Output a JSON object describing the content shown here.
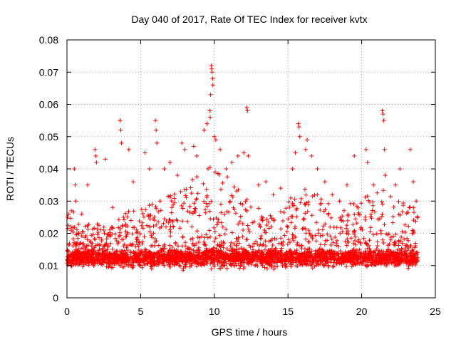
{
  "chart_data": {
    "type": "scatter",
    "title": "Day 040 of 2017, Rate Of TEC Index for receiver kvtx",
    "xlabel": "GPS time / hours",
    "ylabel": "ROTI / TECUs",
    "xlim": [
      0,
      25
    ],
    "ylim": [
      0,
      0.08
    ],
    "x_ticks": [
      "0",
      "5",
      "10",
      "15",
      "20",
      "25"
    ],
    "x_tick_values": [
      0,
      5,
      10,
      15,
      20,
      25
    ],
    "y_ticks": [
      "0",
      "0.01",
      "0.02",
      "0.03",
      "0.04",
      "0.05",
      "0.06",
      "0.07",
      "0.08"
    ],
    "y_tick_values": [
      0,
      0.01,
      0.02,
      0.03,
      0.04,
      0.05,
      0.06,
      0.07,
      0.08
    ],
    "grid": true,
    "marker": "+",
    "color": "#ff0000",
    "x_data_range": [
      0,
      23.8
    ],
    "baseline_band": [
      0.005,
      0.022
    ],
    "series": [
      {
        "name": "ROTI",
        "points": [
          [
            0.05,
            0.025
          ],
          [
            0.1,
            0.026
          ],
          [
            0.3,
            0.027
          ],
          [
            0.5,
            0.04
          ],
          [
            0.55,
            0.035
          ],
          [
            0.6,
            0.03
          ],
          [
            1.0,
            0.026
          ],
          [
            1.4,
            0.035
          ],
          [
            1.9,
            0.046
          ],
          [
            1.95,
            0.044
          ],
          [
            2.0,
            0.042
          ],
          [
            2.6,
            0.043
          ],
          [
            3.1,
            0.028
          ],
          [
            3.6,
            0.055
          ],
          [
            3.65,
            0.052
          ],
          [
            3.7,
            0.048
          ],
          [
            4.2,
            0.046
          ],
          [
            4.5,
            0.036
          ],
          [
            5.3,
            0.045
          ],
          [
            5.6,
            0.04
          ],
          [
            6.0,
            0.055
          ],
          [
            6.05,
            0.052
          ],
          [
            6.1,
            0.048
          ],
          [
            6.6,
            0.04
          ],
          [
            7.0,
            0.042
          ],
          [
            7.5,
            0.038
          ],
          [
            7.8,
            0.048
          ],
          [
            8.0,
            0.046
          ],
          [
            8.6,
            0.047
          ],
          [
            8.8,
            0.044
          ],
          [
            9.3,
            0.052
          ],
          [
            9.5,
            0.054
          ],
          [
            9.8,
            0.072
          ],
          [
            9.82,
            0.071
          ],
          [
            9.85,
            0.07
          ],
          [
            9.88,
            0.068
          ],
          [
            9.9,
            0.066
          ],
          [
            9.75,
            0.063
          ],
          [
            9.7,
            0.058
          ],
          [
            9.72,
            0.056
          ],
          [
            10.0,
            0.05
          ],
          [
            10.1,
            0.049
          ],
          [
            10.4,
            0.046
          ],
          [
            10.8,
            0.04
          ],
          [
            11.2,
            0.042
          ],
          [
            11.6,
            0.044
          ],
          [
            12.2,
            0.059
          ],
          [
            12.25,
            0.058
          ],
          [
            12.0,
            0.045
          ],
          [
            12.3,
            0.044
          ],
          [
            13.0,
            0.035
          ],
          [
            13.5,
            0.036
          ],
          [
            14.0,
            0.032
          ],
          [
            14.5,
            0.034
          ],
          [
            15.3,
            0.04
          ],
          [
            15.5,
            0.045
          ],
          [
            15.7,
            0.054
          ],
          [
            15.75,
            0.053
          ],
          [
            15.8,
            0.05
          ],
          [
            16.2,
            0.046
          ],
          [
            16.3,
            0.049
          ],
          [
            16.6,
            0.044
          ],
          [
            17.0,
            0.04
          ],
          [
            17.5,
            0.036
          ],
          [
            18.0,
            0.032
          ],
          [
            18.5,
            0.03
          ],
          [
            19.0,
            0.035
          ],
          [
            19.5,
            0.044
          ],
          [
            20.3,
            0.046
          ],
          [
            20.4,
            0.042
          ],
          [
            20.8,
            0.035
          ],
          [
            21.4,
            0.058
          ],
          [
            21.45,
            0.057
          ],
          [
            21.5,
            0.055
          ],
          [
            21.55,
            0.046
          ],
          [
            21.6,
            0.038
          ],
          [
            22.3,
            0.035
          ],
          [
            22.6,
            0.04
          ],
          [
            23.3,
            0.046
          ],
          [
            23.5,
            0.036
          ],
          [
            23.7,
            0.03
          ]
        ]
      }
    ]
  }
}
